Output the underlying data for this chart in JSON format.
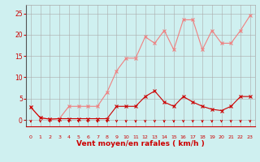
{
  "x": [
    0,
    1,
    2,
    3,
    4,
    5,
    6,
    7,
    8,
    9,
    10,
    11,
    12,
    13,
    14,
    15,
    16,
    17,
    18,
    19,
    20,
    21,
    22,
    23
  ],
  "rafales": [
    3.0,
    0.5,
    0.2,
    0.3,
    3.2,
    3.2,
    3.2,
    3.2,
    6.5,
    11.5,
    14.5,
    14.5,
    19.5,
    18.0,
    21.0,
    16.5,
    23.5,
    23.5,
    16.5,
    21.0,
    18.0,
    18.0,
    21.0,
    24.5
  ],
  "moyen": [
    3.0,
    0.5,
    0.2,
    0.3,
    0.3,
    0.3,
    0.3,
    0.3,
    0.3,
    3.2,
    3.2,
    3.2,
    5.5,
    6.8,
    4.2,
    3.2,
    5.5,
    4.2,
    3.2,
    2.5,
    2.2,
    3.2,
    5.5,
    5.5
  ],
  "bg_color": "#cff0f0",
  "grid_color": "#aaaaaa",
  "line_color_rafales": "#f08080",
  "line_color_moyen": "#cc0000",
  "marker_color_rafales": "#f08080",
  "marker_color_moyen": "#cc0000",
  "arrow_color": "#cc0000",
  "ylabel_ticks": [
    0,
    5,
    10,
    15,
    20,
    25
  ],
  "xlabel": "Vent moyen/en rafales ( km/h )",
  "xlabel_color": "#cc0000",
  "tick_color": "#cc0000",
  "ylim": [
    -1.5,
    27
  ],
  "xlim": [
    -0.5,
    23.5
  ]
}
